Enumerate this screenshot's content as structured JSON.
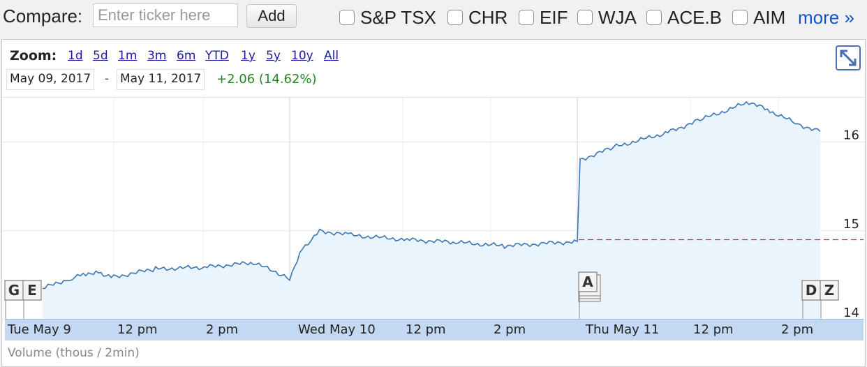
{
  "compare": {
    "label": "Compare:",
    "input_placeholder": "Enter ticker here",
    "add_label": "Add",
    "tickers": [
      "S&P TSX",
      "CHR",
      "EIF",
      "WJA",
      "ACE.B",
      "AIM"
    ],
    "more_label": "more »"
  },
  "zoom": {
    "label": "Zoom:",
    "options": [
      "1d",
      "5d",
      "1m",
      "3m",
      "6m",
      "YTD",
      "1y",
      "5y",
      "10y",
      "All"
    ]
  },
  "range": {
    "start": "May 09, 2017",
    "separator": "-",
    "end": "May 11, 2017",
    "change": "+2.06 (14.62%)"
  },
  "chart": {
    "y_ticks": [
      "16",
      "15",
      "14"
    ],
    "x_labels": [
      "Tue May 9",
      "12 pm",
      "2 pm",
      "Wed May 10",
      "12 pm",
      "2 pm",
      "Thu May 11",
      "12 pm",
      "2 pm"
    ],
    "markers": [
      {
        "letter": "G",
        "name": "marker-g"
      },
      {
        "letter": "E",
        "name": "marker-e"
      },
      {
        "letter": "A",
        "name": "marker-a"
      },
      {
        "letter": "D",
        "name": "marker-d"
      },
      {
        "letter": "Z",
        "name": "marker-z"
      }
    ],
    "volume_label": "Volume (thous / 2min)",
    "colors": {
      "line": "#3a75b5",
      "fill": "#eaf4fc",
      "prev_close": "#cc3333",
      "change": "#228822",
      "link": "#1155cc"
    }
  },
  "chart_data": {
    "type": "area",
    "y_range": [
      14,
      16.5
    ],
    "prev_close": 14.9,
    "series": [
      {
        "values": [
          {
            "x": "Tue May 9 open",
            "y": 14.35
          },
          {
            "x": "Tue May 9 10:30",
            "y": 14.47
          },
          {
            "x": "Tue May 9 11:00",
            "y": 14.52
          },
          {
            "x": "Tue May 9 11:30",
            "y": 14.53
          },
          {
            "x": "Tue May 9 12 pm",
            "y": 14.48
          },
          {
            "x": "Tue May 9 1 pm",
            "y": 14.57
          },
          {
            "x": "Tue May 9 2 pm",
            "y": 14.59
          },
          {
            "x": "Tue May 9 3 pm",
            "y": 14.64
          },
          {
            "x": "Tue May 9 close",
            "y": 14.47
          },
          {
            "x": "Wed May 10 open",
            "y": 14.8
          },
          {
            "x": "Wed May 10 10:15",
            "y": 15.0
          },
          {
            "x": "Wed May 10 11:00",
            "y": 14.95
          },
          {
            "x": "Wed May 10 12 pm",
            "y": 14.9
          },
          {
            "x": "Wed May 10 1 pm",
            "y": 14.87
          },
          {
            "x": "Wed May 10 2 pm",
            "y": 14.83
          },
          {
            "x": "Wed May 10 close",
            "y": 14.88
          },
          {
            "x": "Thu May 11 open",
            "y": 15.8
          },
          {
            "x": "Thu May 11 11:00",
            "y": 15.95
          },
          {
            "x": "Thu May 11 12 pm",
            "y": 16.1
          },
          {
            "x": "Thu May 11 12:30",
            "y": 16.25
          },
          {
            "x": "Thu May 11 1 pm",
            "y": 16.45
          },
          {
            "x": "Thu May 11 1:30",
            "y": 16.35
          },
          {
            "x": "Thu May 11 2 pm",
            "y": 16.2
          },
          {
            "x": "Thu May 11 2:30",
            "y": 16.12
          }
        ]
      }
    ]
  }
}
